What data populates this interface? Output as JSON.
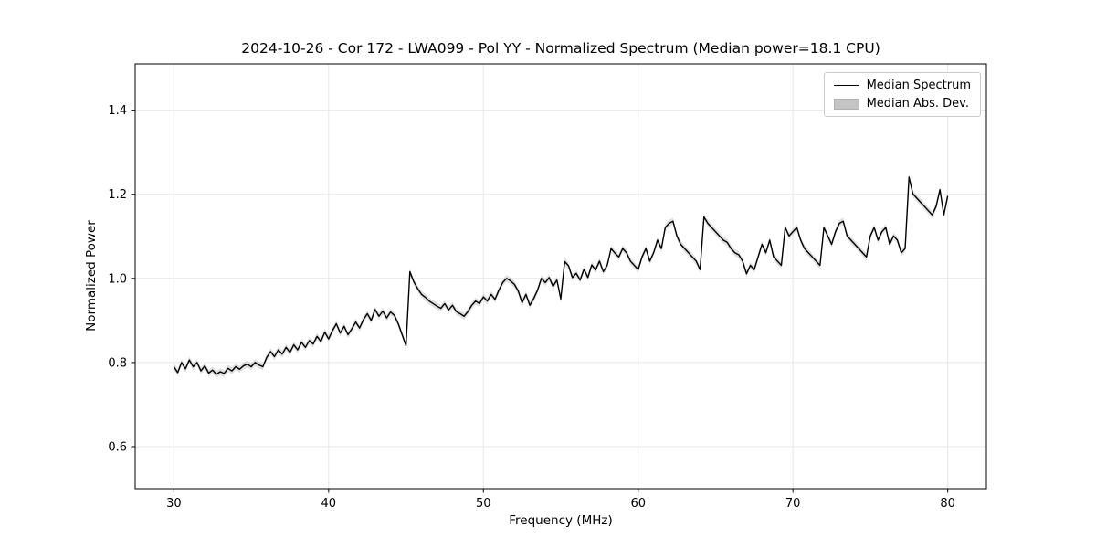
{
  "chart_data": {
    "type": "line",
    "title": "2024-10-26 - Cor 172 - LWA099 - Pol YY - Normalized Spectrum (Median power=18.1 CPU)",
    "xlabel": "Frequency (MHz)",
    "ylabel": "Normalized Power",
    "xlim": [
      27.5,
      82.5
    ],
    "ylim": [
      0.5,
      1.51
    ],
    "xticks": [
      30,
      40,
      50,
      60,
      70,
      80
    ],
    "yticks": [
      0.6,
      0.8,
      1.0,
      1.2,
      1.4
    ],
    "grid": true,
    "legend_position": "upper right",
    "legend": [
      {
        "label": "Median Spectrum",
        "type": "line",
        "color": "#000000"
      },
      {
        "label": "Median Abs. Dev.",
        "type": "patch",
        "color": "#c4c4c4"
      }
    ],
    "series": [
      {
        "name": "Median Spectrum",
        "x_start": 30.0,
        "x_step": 0.25,
        "mad_halfwidth": 0.008,
        "y": [
          0.79,
          0.776,
          0.8,
          0.785,
          0.806,
          0.79,
          0.8,
          0.78,
          0.792,
          0.775,
          0.782,
          0.772,
          0.778,
          0.774,
          0.786,
          0.78,
          0.79,
          0.784,
          0.792,
          0.796,
          0.79,
          0.8,
          0.794,
          0.79,
          0.812,
          0.826,
          0.814,
          0.83,
          0.82,
          0.836,
          0.824,
          0.842,
          0.83,
          0.848,
          0.836,
          0.852,
          0.844,
          0.862,
          0.85,
          0.872,
          0.856,
          0.876,
          0.892,
          0.87,
          0.886,
          0.866,
          0.88,
          0.896,
          0.882,
          0.902,
          0.916,
          0.9,
          0.926,
          0.91,
          0.922,
          0.906,
          0.92,
          0.912,
          0.892,
          0.866,
          0.84,
          1.016,
          0.992,
          0.976,
          0.962,
          0.955,
          0.946,
          0.94,
          0.934,
          0.929,
          0.94,
          0.925,
          0.936,
          0.921,
          0.916,
          0.91,
          0.921,
          0.936,
          0.946,
          0.94,
          0.956,
          0.946,
          0.962,
          0.95,
          0.972,
          0.99,
          1.0,
          0.994,
          0.986,
          0.97,
          0.942,
          0.962,
          0.936,
          0.952,
          0.972,
          1.0,
          0.99,
          1.002,
          0.981,
          0.996,
          0.951,
          1.04,
          1.03,
          1.002,
          1.012,
          0.996,
          1.022,
          1.002,
          1.032,
          1.02,
          1.041,
          1.016,
          1.031,
          1.071,
          1.06,
          1.051,
          1.071,
          1.061,
          1.041,
          1.031,
          1.021,
          1.051,
          1.071,
          1.041,
          1.061,
          1.091,
          1.071,
          1.121,
          1.131,
          1.136,
          1.101,
          1.081,
          1.071,
          1.061,
          1.051,
          1.041,
          1.021,
          1.146,
          1.131,
          1.121,
          1.111,
          1.101,
          1.091,
          1.086,
          1.071,
          1.061,
          1.056,
          1.041,
          1.011,
          1.031,
          1.021,
          1.051,
          1.081,
          1.061,
          1.091,
          1.051,
          1.041,
          1.031,
          1.121,
          1.101,
          1.111,
          1.121,
          1.091,
          1.071,
          1.061,
          1.051,
          1.041,
          1.031,
          1.121,
          1.101,
          1.081,
          1.111,
          1.131,
          1.136,
          1.101,
          1.091,
          1.081,
          1.071,
          1.061,
          1.051,
          1.101,
          1.121,
          1.091,
          1.111,
          1.121,
          1.081,
          1.101,
          1.091,
          1.061,
          1.071,
          1.241,
          1.201,
          1.191,
          1.181,
          1.171,
          1.161,
          1.151,
          1.171,
          1.211,
          1.151,
          1.196
        ]
      }
    ]
  }
}
